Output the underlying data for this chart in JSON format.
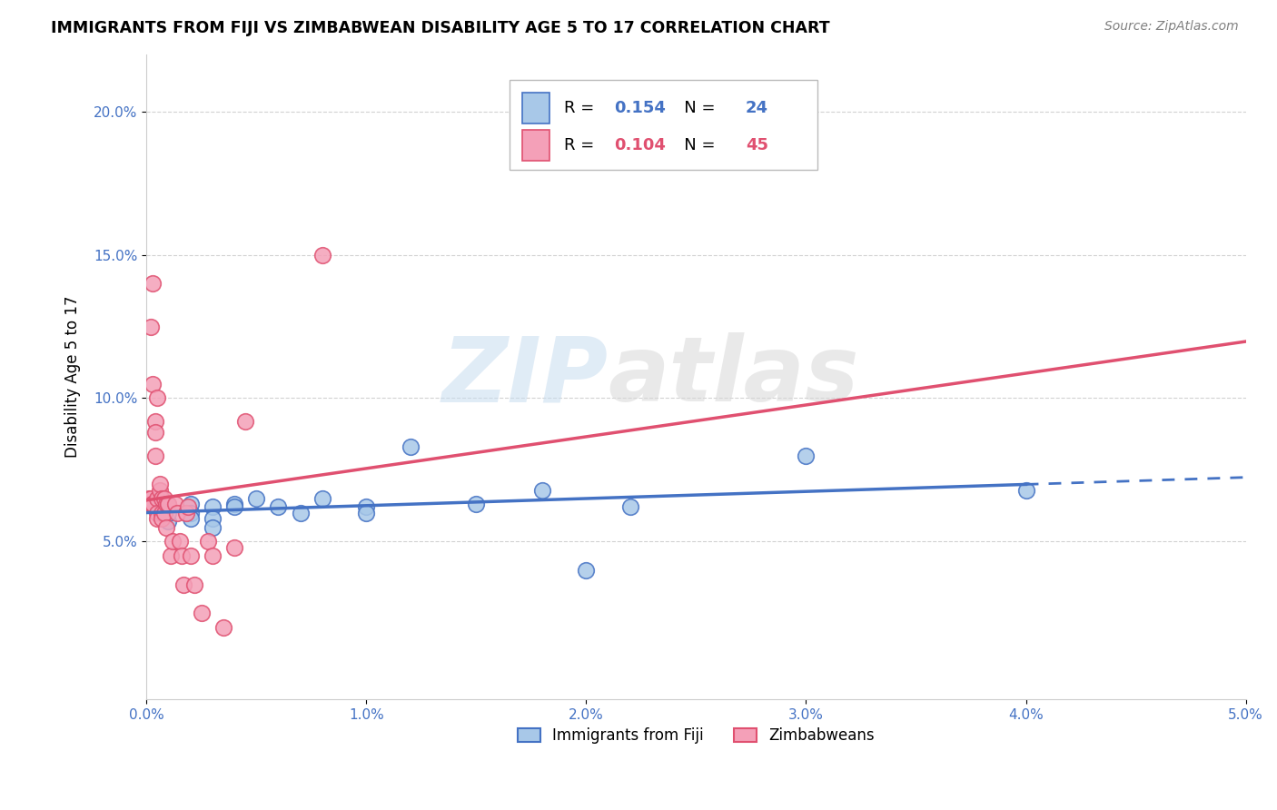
{
  "title": "IMMIGRANTS FROM FIJI VS ZIMBABWEAN DISABILITY AGE 5 TO 17 CORRELATION CHART",
  "source": "Source: ZipAtlas.com",
  "ylabel": "Disability Age 5 to 17",
  "xlim": [
    0.0,
    0.05
  ],
  "ylim": [
    -0.005,
    0.22
  ],
  "xticks": [
    0.0,
    0.01,
    0.02,
    0.03,
    0.04,
    0.05
  ],
  "xtick_labels": [
    "0.0%",
    "1.0%",
    "2.0%",
    "3.0%",
    "4.0%",
    "5.0%"
  ],
  "yticks": [
    0.05,
    0.1,
    0.15,
    0.2
  ],
  "ytick_labels": [
    "5.0%",
    "10.0%",
    "15.0%",
    "20.0%"
  ],
  "legend1_label": "Immigrants from Fiji",
  "legend2_label": "Zimbabweans",
  "r1": 0.154,
  "n1": 24,
  "r2": 0.104,
  "n2": 45,
  "color_fiji": "#a8c8e8",
  "color_zim": "#f4a0b8",
  "color_fiji_line": "#4472c4",
  "color_zim_line": "#e05070",
  "watermark_zip": "ZIP",
  "watermark_atlas": "atlas",
  "fiji_x": [
    0.0005,
    0.001,
    0.001,
    0.002,
    0.002,
    0.002,
    0.003,
    0.003,
    0.003,
    0.004,
    0.004,
    0.005,
    0.006,
    0.007,
    0.008,
    0.01,
    0.01,
    0.012,
    0.015,
    0.018,
    0.02,
    0.022,
    0.03,
    0.04
  ],
  "fiji_y": [
    0.062,
    0.057,
    0.06,
    0.063,
    0.06,
    0.058,
    0.062,
    0.058,
    0.055,
    0.063,
    0.062,
    0.065,
    0.062,
    0.06,
    0.065,
    0.062,
    0.06,
    0.083,
    0.063,
    0.068,
    0.04,
    0.062,
    0.08,
    0.068
  ],
  "zim_x": [
    0.0001,
    0.0001,
    0.0002,
    0.0002,
    0.0002,
    0.0003,
    0.0003,
    0.0003,
    0.0003,
    0.0004,
    0.0004,
    0.0004,
    0.0005,
    0.0005,
    0.0005,
    0.0005,
    0.0006,
    0.0006,
    0.0007,
    0.0007,
    0.0007,
    0.0008,
    0.0008,
    0.0009,
    0.0009,
    0.001,
    0.001,
    0.0011,
    0.0012,
    0.0013,
    0.0014,
    0.0015,
    0.0016,
    0.0017,
    0.0018,
    0.0019,
    0.002,
    0.0022,
    0.0025,
    0.0028,
    0.003,
    0.0035,
    0.004,
    0.0045,
    0.008
  ],
  "zim_y": [
    0.063,
    0.065,
    0.063,
    0.125,
    0.065,
    0.14,
    0.105,
    0.063,
    0.063,
    0.092,
    0.088,
    0.08,
    0.065,
    0.1,
    0.06,
    0.058,
    0.068,
    0.07,
    0.065,
    0.06,
    0.058,
    0.065,
    0.06,
    0.063,
    0.055,
    0.063,
    0.063,
    0.045,
    0.05,
    0.063,
    0.06,
    0.05,
    0.045,
    0.035,
    0.06,
    0.062,
    0.045,
    0.035,
    0.025,
    0.05,
    0.045,
    0.02,
    0.048,
    0.092,
    0.15
  ]
}
